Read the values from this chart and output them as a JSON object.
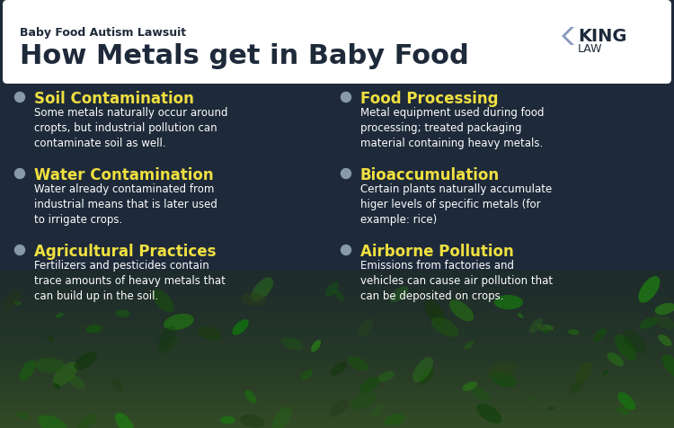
{
  "bg_color": "#1e2a3a",
  "header_bg": "#ffffff",
  "header_subtitle": "Baby Food Autism Lawsuit",
  "header_title": "How Metals get in Baby Food",
  "header_title_color": "#1e2a3a",
  "header_subtitle_color": "#1e2a3a",
  "logo_text1": "KING",
  "logo_text2": "LAW",
  "logo_color": "#1e2a3a",
  "accent_color": "#f0e040",
  "bullet_color": "#8899aa",
  "text_color": "#ffffff",
  "left_items": [
    {
      "heading": "Soil Contamination",
      "body": "Some metals naturally occur around\ncropts, but industrial pollution can\ncontaminate soil as well."
    },
    {
      "heading": "Water Contamination",
      "body": "Water already contaminated from\nindustrial means that is later used\nto irrigate crops."
    },
    {
      "heading": "Agricultural Practices",
      "body": "Fertilizers and pesticides contain\ntrace amounts of heavy metals that\ncan build up in the soil."
    }
  ],
  "right_items": [
    {
      "heading": "Food Processing",
      "body": "Metal equipment used during food\nprocessing; treated packaging\nmaterial containing heavy metals."
    },
    {
      "heading": "Bioaccumulation",
      "body": "Certain plants naturally accumulate\nhiger levels of specific metals (for\nexample: rice)"
    },
    {
      "heading": "Airborne Pollution",
      "body": "Emissions from factories and\nvehicles can cause air pollution that\ncan be deposited on crops."
    }
  ]
}
